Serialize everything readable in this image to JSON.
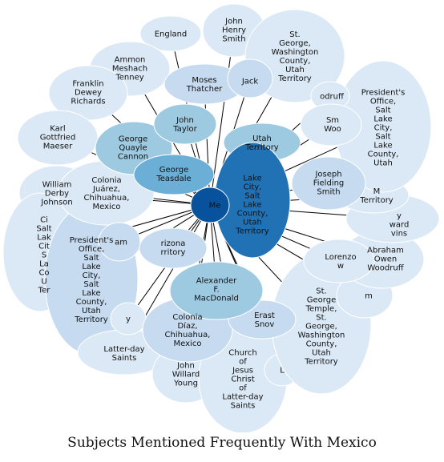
{
  "caption": "Subjects Mentioned Frequently With Mexico",
  "center": {
    "id": "mexico",
    "label": "Mexico",
    "color": "#08519c"
  },
  "nodes": [
    {
      "id": "mexico",
      "label": "Me",
      "color": "#08519c"
    },
    {
      "id": "england",
      "label": "England",
      "color": "#dbe9f6"
    },
    {
      "id": "john-henry-smith",
      "label": "John\nHenry\nSmith",
      "color": "#dbe9f6"
    },
    {
      "id": "st-george-utah",
      "label": "St.\nGeorge,\nWashington\nCounty,\nUtah\nTerritory",
      "color": "#dbe9f6"
    },
    {
      "id": "ammon-tenney",
      "label": "Ammon\nMeshach\nTenney",
      "color": "#dbe9f6"
    },
    {
      "id": "moses-thatcher",
      "label": "Moses\nThatcher",
      "color": "#c6dbef"
    },
    {
      "id": "jackson",
      "label": "Jack",
      "color": "#c6dbef"
    },
    {
      "id": "woodruff-top",
      "label": "odruff",
      "color": "#dbe9f6"
    },
    {
      "id": "presidents-office-right",
      "label": "President's\nOffice,\nSalt\nLake\nCity,\nSalt\nLake\nCounty,\nUtah",
      "color": "#dbe9f6"
    },
    {
      "id": "franklin-richards",
      "label": "Franklin\nDewey\nRichards",
      "color": "#dbe9f6"
    },
    {
      "id": "john-taylor",
      "label": "John\nTaylor",
      "color": "#9ecae1"
    },
    {
      "id": "utah-territory",
      "label": "Utah\nTerritory",
      "color": "#9ecae1"
    },
    {
      "id": "smith-woodruff",
      "label": "Sm\nWoo",
      "color": "#dbe9f6"
    },
    {
      "id": "karl-maeser",
      "label": "Karl\nGottfried\nMaeser",
      "color": "#dbe9f6"
    },
    {
      "id": "george-cannon",
      "label": "George\nQuayle\nCannon",
      "color": "#9ecae1"
    },
    {
      "id": "george-teasdale",
      "label": "George\nTeasdale",
      "color": "#6baed6"
    },
    {
      "id": "salt-lake-city",
      "label": "Lake\nCity,\nSalt\nLake\nCounty,\nUtah\nTerritory",
      "color": "#2171b5"
    },
    {
      "id": "joseph-f-smith",
      "label": "Joseph\nFielding\nSmith",
      "color": "#c6dbef"
    },
    {
      "id": "colonia-juarez",
      "label": "Colonia\nJuárez,\nChihuahua,\nMexico",
      "color": "#dbe9f6"
    },
    {
      "id": "william-johnson",
      "label": "William\nDerby\nJohnson",
      "color": "#dbe9f6"
    },
    {
      "id": "m-territory",
      "label": "M\nTerritory",
      "color": "#dbe9f6"
    },
    {
      "id": "edward-ivins",
      "label": "y\nward\nvins",
      "color": "#dbe9f6"
    },
    {
      "id": "salt-lake-left",
      "label": "Ci\nSalt\nLak\nCit\nS\nLa\nCo\nU\nTer",
      "color": "#dbe9f6"
    },
    {
      "id": "presidents-office-left",
      "label": "President's\nOffice,\nSalt\nLake\nCity,\nSalt\nLake\nCounty,\nUtah\nTerritory",
      "color": "#c6dbef"
    },
    {
      "id": "abraham",
      "label": "am",
      "color": "#c6dbef"
    },
    {
      "id": "arizona-territory",
      "label": "rizona\nrritory",
      "color": "#c6dbef"
    },
    {
      "id": "lorenzo-snow",
      "label": "Lorenzo\nw",
      "color": "#dbe9f6"
    },
    {
      "id": "abraham-woodruff",
      "label": "Abraham\nOwen\nWoodruff",
      "color": "#dbe9f6"
    },
    {
      "id": "alexander-macdonald",
      "label": "Alexander\nF.\nMacDonald",
      "color": "#9ecae1"
    },
    {
      "id": "m-right",
      "label": "m",
      "color": "#dbe9f6"
    },
    {
      "id": "colonia-diaz",
      "label": "Colonia\nDíaz,\nChihuahua,\nMexico",
      "color": "#c6dbef"
    },
    {
      "id": "erastus-snow",
      "label": "Erast\nSnov",
      "color": "#c6dbef"
    },
    {
      "id": "st-george-temple",
      "label": "St.\nGeorge\nTemple,\nSt.\nGeorge,\nWashington\nCounty,\nUtah\nTerritory",
      "color": "#dbe9f6"
    },
    {
      "id": "latter-day-saints-left",
      "label": "Latter-day\nSaints",
      "color": "#dbe9f6"
    },
    {
      "id": "y-fragment",
      "label": "y",
      "color": "#dbe9f6"
    },
    {
      "id": "john-willard-young",
      "label": "John\nWillard\nYoung",
      "color": "#dbe9f6"
    },
    {
      "id": "church-jesus-christ",
      "label": "Church\nof\nJesus\nChrist\nof\nLatter-day\nSaints",
      "color": "#dbe9f6"
    },
    {
      "id": "l-fragment",
      "label": "L",
      "color": "#dbe9f6"
    }
  ]
}
